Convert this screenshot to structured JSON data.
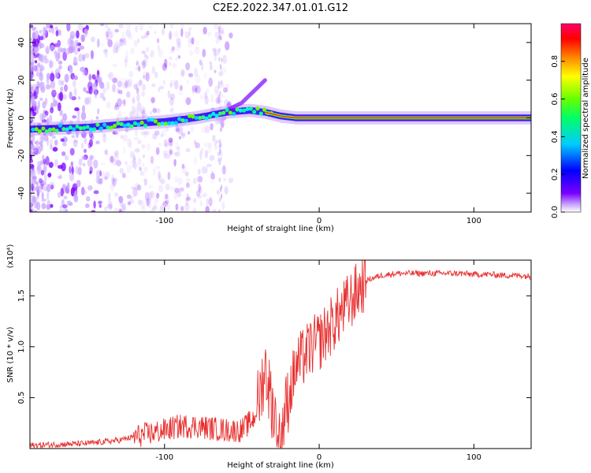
{
  "title": "C2E2.2022.347.01.01.G12",
  "chart_data": [
    {
      "type": "heatmap",
      "xlabel": "Height of straight line (km)",
      "ylabel": "Frequency (Hz)",
      "xlim": [
        -187,
        137
      ],
      "ylim": [
        -50,
        50
      ],
      "xticks": [
        -100,
        0,
        100
      ],
      "yticks": [
        -40,
        -20,
        0,
        20,
        40
      ],
      "colorbar": {
        "label": "Normalized spectral amplitude",
        "range": [
          0,
          1
        ],
        "ticks": [
          "0.0",
          "0.2",
          "0.4",
          "0.6",
          "0.8"
        ],
        "colors": [
          "#ffffff",
          "#c8a6ff",
          "#7a00ff",
          "#0000ff",
          "#00ccff",
          "#00ff66",
          "#66ff00",
          "#ffff00",
          "#ff8800",
          "#ff0000",
          "#ff0066"
        ]
      },
      "ridge": {
        "description_points_x": [
          -187,
          -150,
          -120,
          -100,
          -80,
          -60,
          -45,
          -35,
          -30,
          -25,
          -15,
          0,
          10,
          30,
          60,
          90,
          100,
          110,
          137
        ],
        "description_points_y": [
          -6,
          -5,
          -3,
          -2,
          0,
          3,
          4,
          3,
          2,
          1,
          0,
          0,
          0,
          0,
          0,
          0,
          0,
          0,
          0
        ]
      },
      "upper_branch": {
        "x": [
          -60,
          -50,
          -45,
          -40,
          -35
        ],
        "y": [
          4,
          8,
          12,
          16,
          20
        ]
      }
    },
    {
      "type": "line",
      "xlabel": "Height of straight line (km)",
      "ylabel": "SNR (10 * v/v)",
      "yscale_note": "(x10⁴)",
      "xlim": [
        -187,
        137
      ],
      "ylim": [
        0,
        1.85
      ],
      "xticks": [
        -100,
        0,
        100
      ],
      "yticks": [
        0.5,
        1.0,
        1.5
      ],
      "color": "#e83030",
      "series": [
        {
          "x": [
            -187,
            -170,
            -150,
            -130,
            -115,
            -100,
            -90,
            -80,
            -70,
            -60,
            -50,
            -42,
            -38,
            -35,
            -30,
            -25,
            -20,
            -15,
            -10,
            -5,
            0,
            5,
            10,
            15,
            20,
            25,
            30,
            40,
            50,
            60,
            70,
            80,
            90,
            100,
            110,
            120,
            130,
            137
          ],
          "y": [
            0.03,
            0.04,
            0.05,
            0.08,
            0.13,
            0.18,
            0.22,
            0.22,
            0.2,
            0.18,
            0.18,
            0.3,
            0.55,
            0.8,
            0.4,
            0.15,
            0.5,
            0.8,
            0.9,
            1.0,
            1.05,
            1.15,
            1.25,
            1.35,
            1.45,
            1.55,
            1.65,
            1.7,
            1.72,
            1.72,
            1.72,
            1.72,
            1.72,
            1.71,
            1.71,
            1.7,
            1.7,
            1.69
          ]
        }
      ]
    }
  ]
}
